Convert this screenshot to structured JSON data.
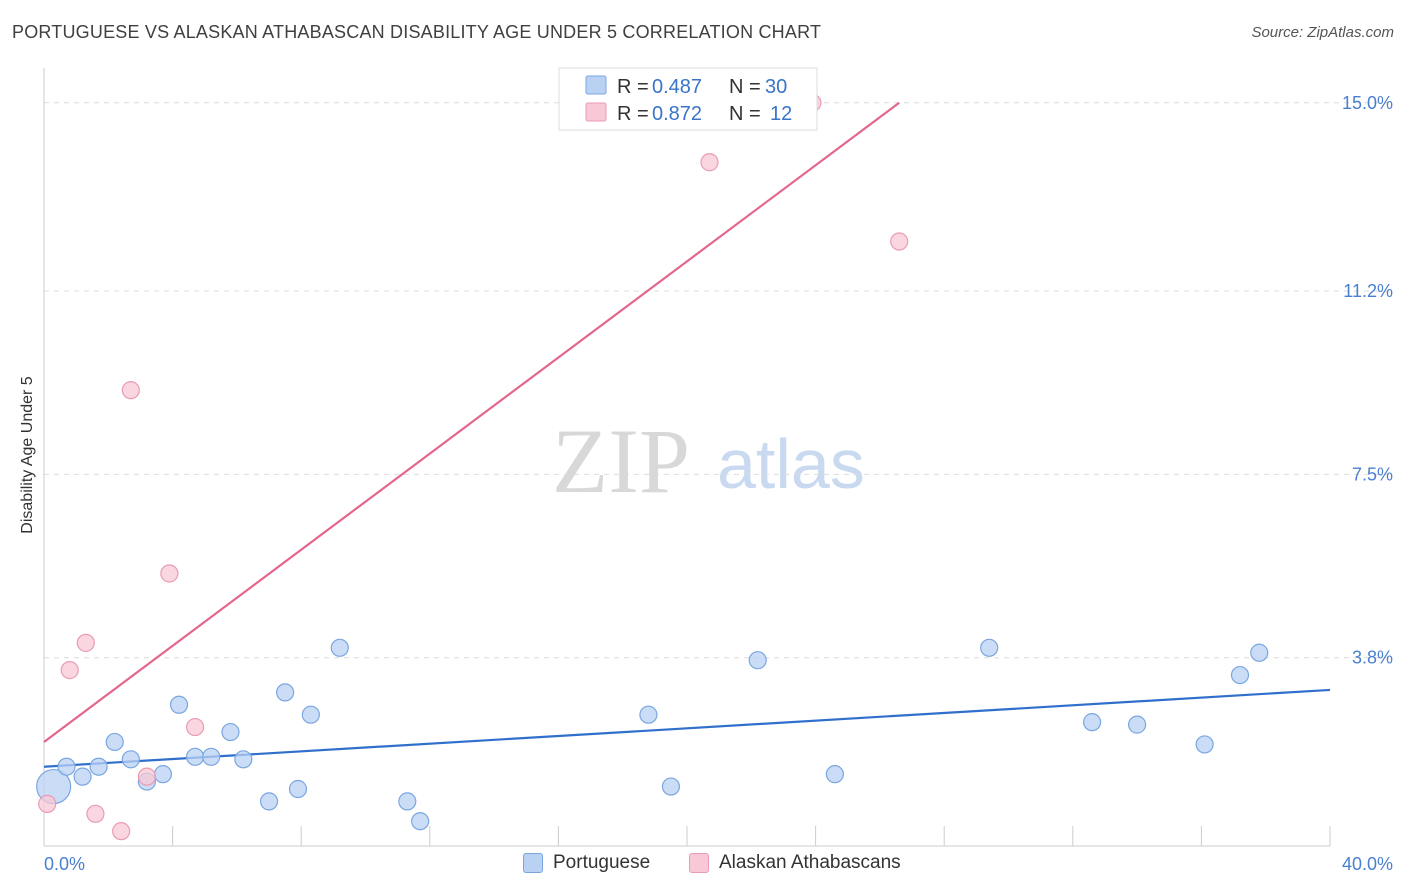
{
  "header": {
    "title": "PORTUGUESE VS ALASKAN ATHABASCAN DISABILITY AGE UNDER 5 CORRELATION CHART",
    "source": "Source: ZipAtlas.com"
  },
  "watermark": {
    "zip": "ZIP",
    "atlas": "atlas"
  },
  "colors": {
    "blue_fill": "#b9d2f3",
    "blue_stroke": "#7aa6e0",
    "blue_line": "#3070cc",
    "pink_fill": "#f8c8d6",
    "pink_stroke": "#eb9ab3",
    "pink_line": "#e5668b",
    "grid": "#dcdcdc",
    "tick_text": "#4a7fcf"
  },
  "chart_data": {
    "type": "scatter",
    "title": "PORTUGUESE VS ALASKAN ATHABASCAN DISABILITY AGE UNDER 5 CORRELATION CHART",
    "xlabel": "",
    "ylabel": "Disability Age Under 5",
    "xlim": [
      0,
      40
    ],
    "ylim": [
      0,
      15.5
    ],
    "y_ticks": [
      3.8,
      7.5,
      11.2,
      15.0
    ],
    "y_tick_labels": [
      "3.8%",
      "7.5%",
      "11.2%",
      "15.0%"
    ],
    "x_tick_labels": [
      "0.0%",
      "40.0%"
    ],
    "legend": {
      "rows": [
        {
          "r_label": "R =",
          "r_value": "0.487",
          "n_label": "N =",
          "n_value": "30"
        },
        {
          "r_label": "R =",
          "r_value": "0.872",
          "n_label": "N =",
          "n_value": "12"
        }
      ]
    },
    "series": [
      {
        "name": "Portuguese",
        "points": [
          [
            0.3,
            1.2
          ],
          [
            0.7,
            1.6
          ],
          [
            1.2,
            1.4
          ],
          [
            1.7,
            1.6
          ],
          [
            2.2,
            2.1
          ],
          [
            2.7,
            1.75
          ],
          [
            3.2,
            1.3
          ],
          [
            3.7,
            1.45
          ],
          [
            4.2,
            2.85
          ],
          [
            4.7,
            1.8
          ],
          [
            5.2,
            1.8
          ],
          [
            5.8,
            2.3
          ],
          [
            6.2,
            1.75
          ],
          [
            7.0,
            0.9
          ],
          [
            7.5,
            3.1
          ],
          [
            7.9,
            1.15
          ],
          [
            8.3,
            2.65
          ],
          [
            9.2,
            4.0
          ],
          [
            11.3,
            0.9
          ],
          [
            11.7,
            0.5
          ],
          [
            18.8,
            2.65
          ],
          [
            19.5,
            1.2
          ],
          [
            22.2,
            3.75
          ],
          [
            24.6,
            1.45
          ],
          [
            29.4,
            4.0
          ],
          [
            32.6,
            2.5
          ],
          [
            34.0,
            2.45
          ],
          [
            36.1,
            2.05
          ],
          [
            37.2,
            3.45
          ],
          [
            37.8,
            3.9
          ]
        ],
        "trend": [
          [
            0,
            1.6
          ],
          [
            40,
            3.15
          ]
        ]
      },
      {
        "name": "Alaskan Athabascans",
        "points": [
          [
            0.1,
            0.85
          ],
          [
            0.8,
            3.55
          ],
          [
            1.3,
            4.1
          ],
          [
            1.6,
            0.65
          ],
          [
            2.4,
            0.3
          ],
          [
            2.7,
            9.2
          ],
          [
            3.2,
            1.4
          ],
          [
            3.9,
            5.5
          ],
          [
            4.7,
            2.4
          ],
          [
            20.7,
            13.8
          ],
          [
            23.9,
            15.0
          ],
          [
            26.6,
            12.2
          ]
        ],
        "trend": [
          [
            0,
            2.1
          ],
          [
            26.6,
            15.0
          ]
        ]
      }
    ]
  },
  "bottom_legend": {
    "items": [
      {
        "label": "Portuguese"
      },
      {
        "label": "Alaskan Athabascans"
      }
    ]
  }
}
